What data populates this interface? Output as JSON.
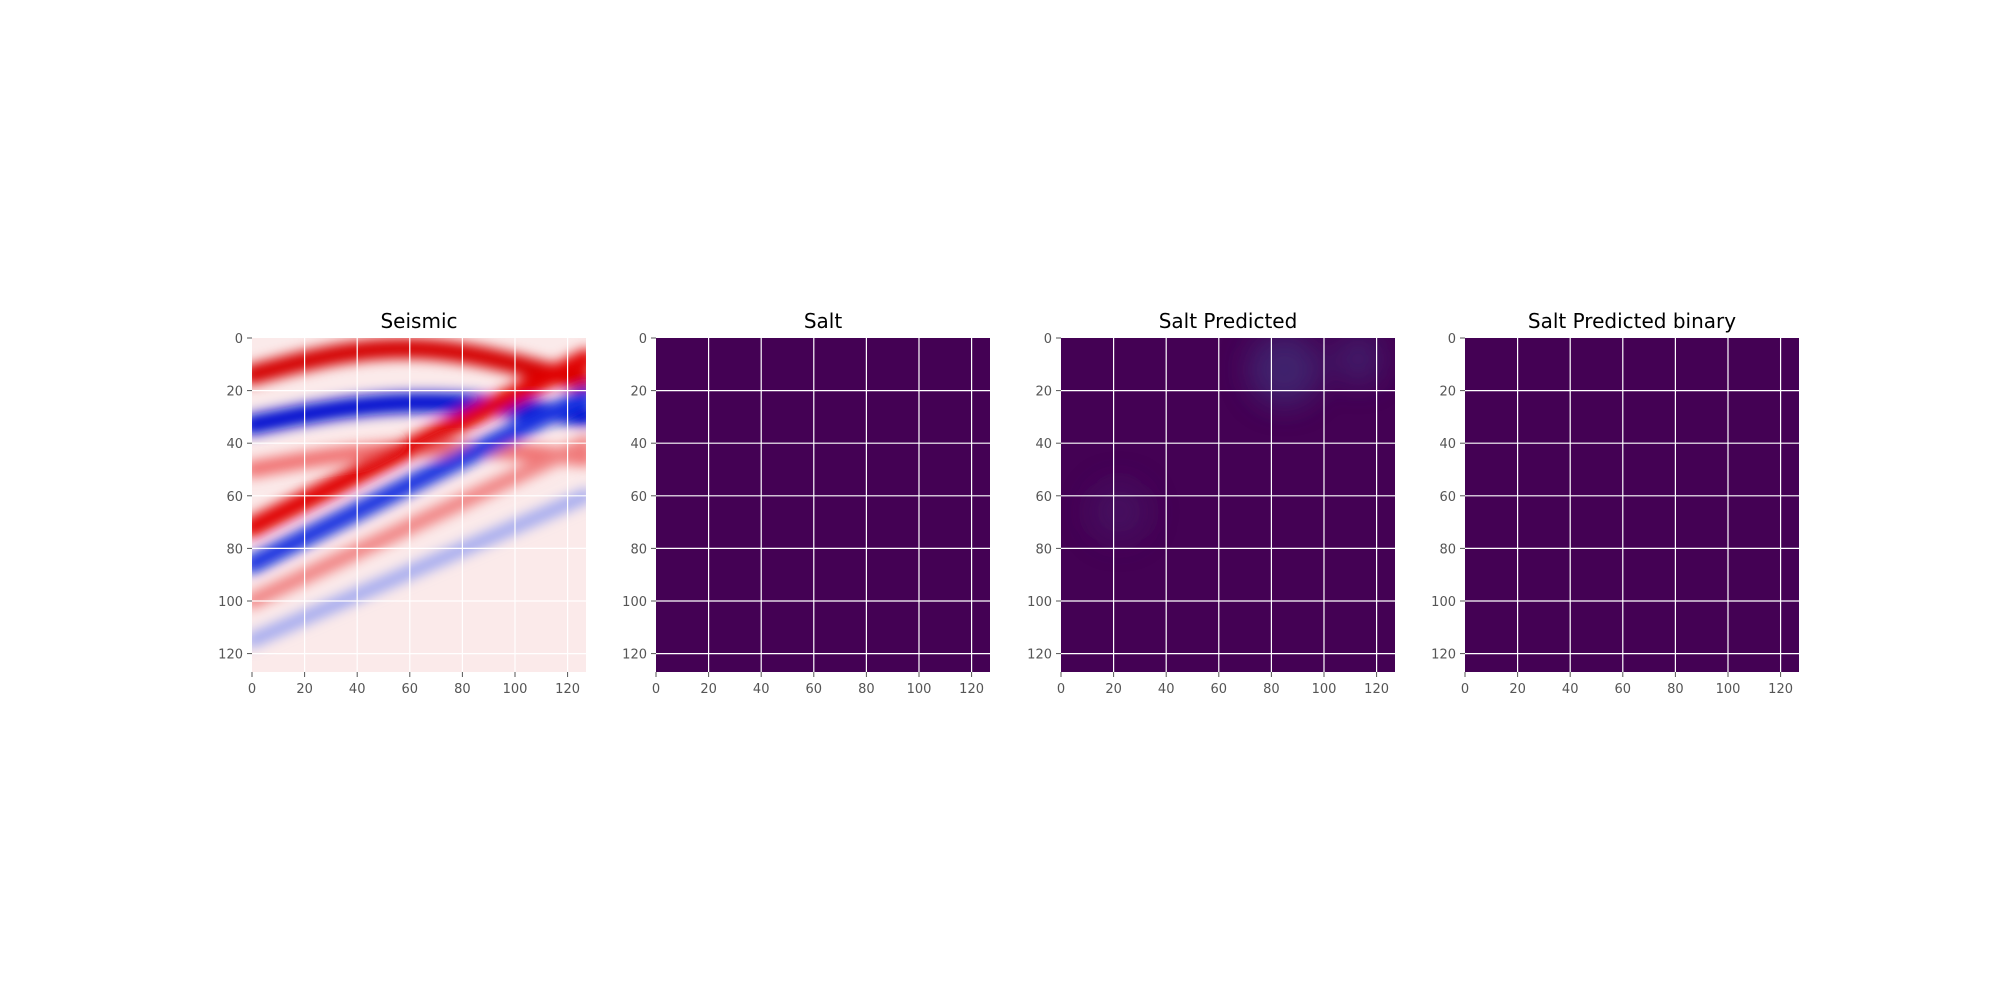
{
  "figure": {
    "panel_titles": [
      "Seismic",
      "Salt",
      "Salt Predicted",
      "Salt Predicted binary"
    ]
  },
  "chart_data": [
    {
      "type": "heatmap",
      "title": "Seismic",
      "colormap": "seismic",
      "xlim": [
        0,
        127
      ],
      "ylim": [
        127,
        0
      ],
      "xticks": [
        0,
        20,
        40,
        60,
        80,
        100,
        120
      ],
      "yticks": [
        0,
        20,
        40,
        60,
        80,
        100,
        120
      ],
      "grid": true,
      "bands": [
        {
          "color": "#d40000",
          "y_left": 14,
          "y_right": 14,
          "amplitude": 10,
          "width": 3.2
        },
        {
          "color": "#0010d0",
          "y_left": 33,
          "y_right": 28,
          "amplitude": 6,
          "width": 3.2
        },
        {
          "color": "#f07070",
          "y_left": 50,
          "y_right": 44,
          "amplitude": 5,
          "width": 2.6
        },
        {
          "color": "#e00000",
          "y_left": 72,
          "y_right": 8,
          "amplitude": 0,
          "width": 3.2
        },
        {
          "color": "#1830e0",
          "y_left": 86,
          "y_right": 22,
          "amplitude": 0,
          "width": 3.0
        },
        {
          "color": "#f08080",
          "y_left": 100,
          "y_right": 40,
          "amplitude": 0,
          "width": 2.4
        },
        {
          "color": "#a0a8f0",
          "y_left": 115,
          "y_right": 60,
          "amplitude": 0,
          "width": 2.2
        }
      ]
    },
    {
      "type": "heatmap",
      "title": "Salt",
      "colormap": "viridis",
      "fill_color": "#440154",
      "value": 0,
      "xlim": [
        0,
        127
      ],
      "ylim": [
        127,
        0
      ],
      "xticks": [
        0,
        20,
        40,
        60,
        80,
        100,
        120
      ],
      "yticks": [
        0,
        20,
        40,
        60,
        80,
        100,
        120
      ],
      "grid": true
    },
    {
      "type": "heatmap",
      "title": "Salt Predicted",
      "colormap": "viridis",
      "fill_color": "#440154",
      "value": 0,
      "highlights": [
        {
          "x": 85,
          "y": 12,
          "r": 14,
          "color": "#3b4a8c",
          "opacity": 0.45
        },
        {
          "x": 113,
          "y": 8,
          "r": 10,
          "color": "#3b4a8c",
          "opacity": 0.35
        },
        {
          "x": 22,
          "y": 66,
          "r": 12,
          "color": "#472a78",
          "opacity": 0.3
        }
      ],
      "xlim": [
        0,
        127
      ],
      "ylim": [
        127,
        0
      ],
      "xticks": [
        0,
        20,
        40,
        60,
        80,
        100,
        120
      ],
      "yticks": [
        0,
        20,
        40,
        60,
        80,
        100,
        120
      ],
      "grid": true
    },
    {
      "type": "heatmap",
      "title": "Salt Predicted binary",
      "colormap": "viridis",
      "fill_color": "#440154",
      "value": 0,
      "xlim": [
        0,
        127
      ],
      "ylim": [
        127,
        0
      ],
      "xticks": [
        0,
        20,
        40,
        60,
        80,
        100,
        120
      ],
      "yticks": [
        0,
        20,
        40,
        60,
        80,
        100,
        120
      ],
      "grid": true
    }
  ]
}
